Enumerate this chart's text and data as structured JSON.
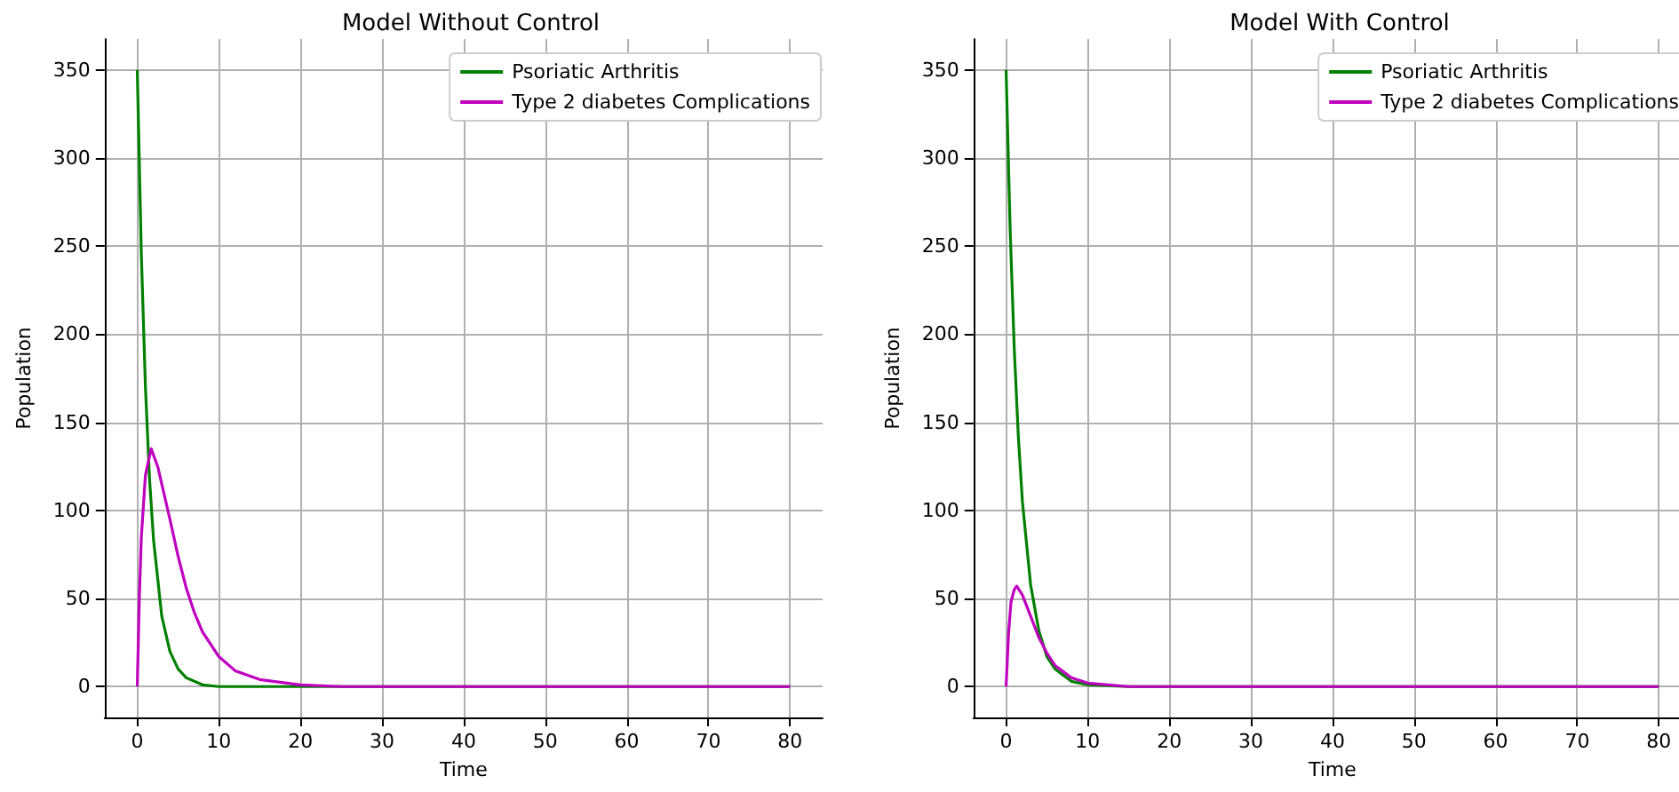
{
  "chart_data": [
    {
      "type": "line",
      "title": "Model Without Control",
      "xlabel": "Time",
      "ylabel": "Population",
      "xlim": [
        -4,
        84
      ],
      "xticks": [
        0,
        10,
        20,
        30,
        40,
        50,
        60,
        70,
        80
      ],
      "ylim": [
        -17.5,
        367.5
      ],
      "yticks": [
        0,
        50,
        100,
        150,
        200,
        250,
        300,
        350
      ],
      "grid": true,
      "legend": "top right",
      "marker": "none",
      "line_style": "solid",
      "series": [
        {
          "name": "Psoriatic Arthritis",
          "color": "#008000",
          "x": [
            0,
            0.5,
            1,
            1.5,
            2,
            3,
            4,
            5,
            6,
            8,
            10,
            15,
            80
          ],
          "values": [
            350,
            245,
            170,
            118,
            83,
            40,
            20,
            10,
            5,
            1,
            0,
            0,
            0
          ]
        },
        {
          "name": "Type 2 diabetes Complications",
          "color": "#bf00bf",
          "x": [
            0,
            0.25,
            0.5,
            1,
            1.7,
            2.5,
            3,
            4,
            5,
            6,
            7,
            8,
            10,
            12,
            15,
            20,
            25,
            30,
            80
          ],
          "values": [
            0,
            50,
            85,
            120,
            135,
            125,
            115,
            95,
            74,
            56,
            42,
            31,
            17,
            9,
            4,
            1,
            0,
            0,
            0
          ]
        }
      ]
    },
    {
      "type": "line",
      "title": "Model With Control",
      "xlabel": "Time",
      "ylabel": "Population",
      "xlim": [
        -4,
        84
      ],
      "xticks": [
        0,
        10,
        20,
        30,
        40,
        50,
        60,
        70,
        80
      ],
      "ylim": [
        -17.5,
        367.5
      ],
      "yticks": [
        0,
        50,
        100,
        150,
        200,
        250,
        300,
        350
      ],
      "grid": true,
      "legend": "top right",
      "marker": "none",
      "line_style": "solid",
      "series": [
        {
          "name": "Psoriatic Arthritis",
          "color": "#008000",
          "x": [
            0,
            0.5,
            1,
            1.5,
            2,
            3,
            4,
            5,
            6,
            8,
            10,
            15,
            80
          ],
          "values": [
            350,
            259,
            192,
            142,
            105,
            58,
            32,
            17,
            10,
            3,
            1,
            0,
            0
          ]
        },
        {
          "name": "Type 2 diabetes Complications",
          "color": "#bf00bf",
          "x": [
            0,
            0.3,
            0.6,
            1,
            1.3,
            2,
            3,
            4,
            5,
            6,
            8,
            10,
            15,
            20,
            80
          ],
          "values": [
            0,
            30,
            48,
            55,
            57,
            52,
            40,
            28,
            19,
            12,
            5,
            2,
            0,
            0,
            0
          ]
        }
      ]
    }
  ]
}
